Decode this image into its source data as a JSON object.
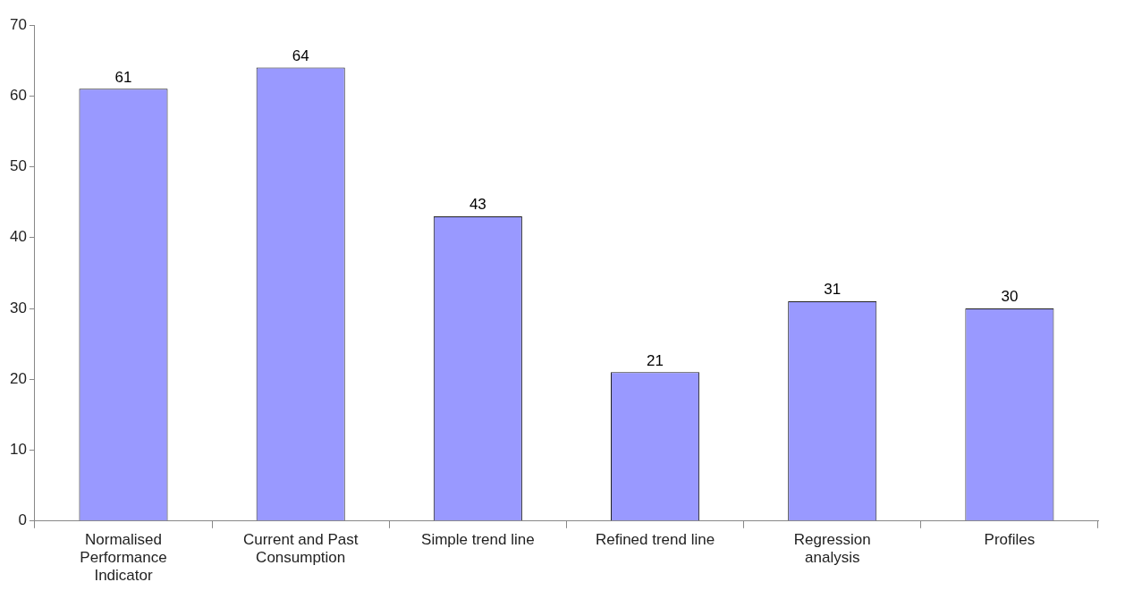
{
  "chart_data": {
    "type": "bar",
    "categories": [
      "Normalised Performance Indicator",
      "Current and Past Consumption",
      "Simple trend line",
      "Refined trend line",
      "Regression analysis",
      "Profiles"
    ],
    "values": [
      61,
      64,
      43,
      21,
      31,
      30
    ],
    "color": "#9999ff",
    "ylim": [
      0,
      70
    ],
    "yticks": [
      0,
      10,
      20,
      30,
      40,
      50,
      60,
      70
    ],
    "grid": false,
    "legend": false,
    "data_labels": true
  }
}
